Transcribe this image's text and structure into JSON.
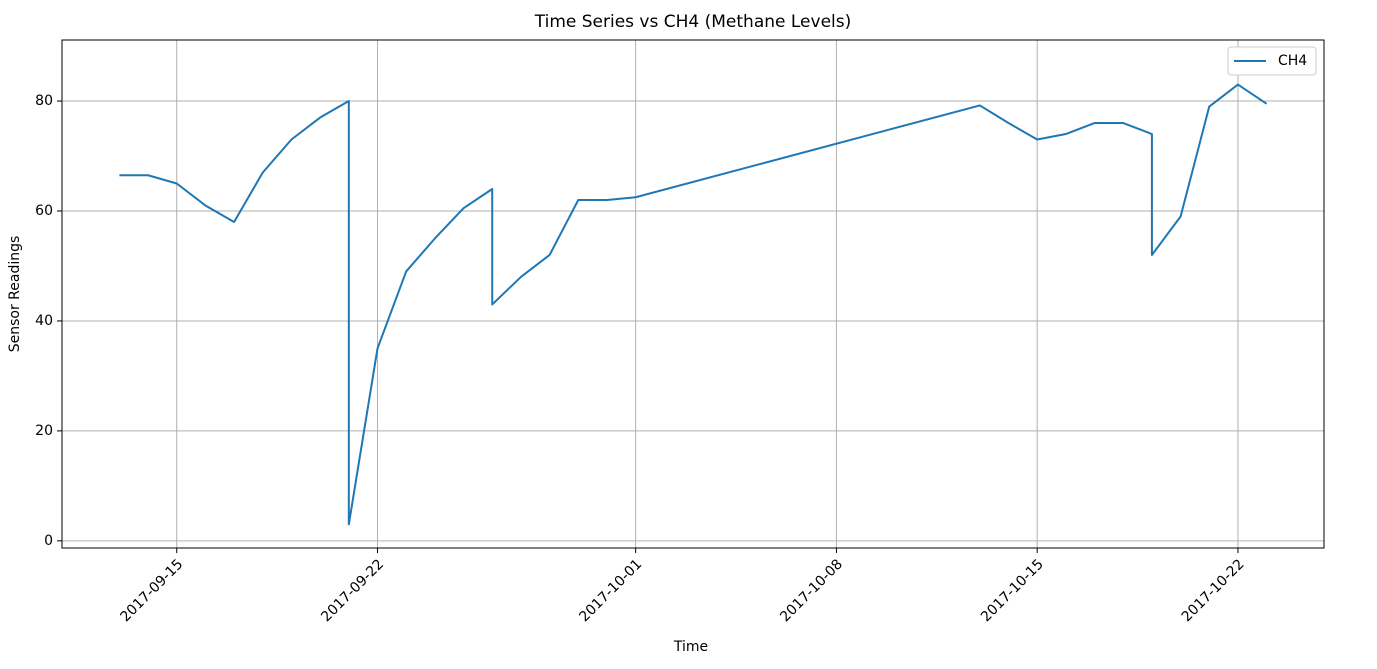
{
  "chart_data": {
    "type": "line",
    "title": "Time Series vs CH4 (Methane Levels)",
    "x_label": "Time",
    "y_label": "Sensor Readings",
    "x": [
      "2017-09-13",
      "2017-09-14",
      "2017-09-15",
      "2017-09-16",
      "2017-09-17",
      "2017-09-18",
      "2017-09-19",
      "2017-09-20",
      "2017-09-21",
      "2017-09-21",
      "2017-09-22",
      "2017-09-23",
      "2017-09-24",
      "2017-09-25",
      "2017-09-26",
      "2017-09-26",
      "2017-09-27",
      "2017-09-28",
      "2017-09-29",
      "2017-09-30",
      "2017-10-01",
      "2017-10-13",
      "2017-10-14",
      "2017-10-15",
      "2017-10-16",
      "2017-10-17",
      "2017-10-18",
      "2017-10-19",
      "2017-10-19",
      "2017-10-20",
      "2017-10-21",
      "2017-10-22",
      "2017-10-23"
    ],
    "series": [
      {
        "name": "CH4",
        "color": "#1f77b4",
        "values": [
          66.5,
          66.5,
          65,
          61,
          58,
          67,
          73,
          77,
          80,
          3,
          35,
          49,
          55,
          60.5,
          64,
          43,
          48,
          52,
          62,
          62,
          62.5,
          79.2,
          76,
          73,
          74,
          76,
          76,
          74,
          52,
          59,
          79,
          83,
          79.5
        ]
      }
    ],
    "xlim": [
      "2017-09-11",
      "2017-10-25"
    ],
    "xticks": [
      "2017-09-15",
      "2017-09-22",
      "2017-10-01",
      "2017-10-08",
      "2017-10-15",
      "2017-10-22"
    ],
    "ylim": [
      -1.3,
      91.1
    ],
    "yticks": [
      0,
      20,
      40,
      60,
      80
    ],
    "grid": true,
    "legend": "upper right"
  }
}
